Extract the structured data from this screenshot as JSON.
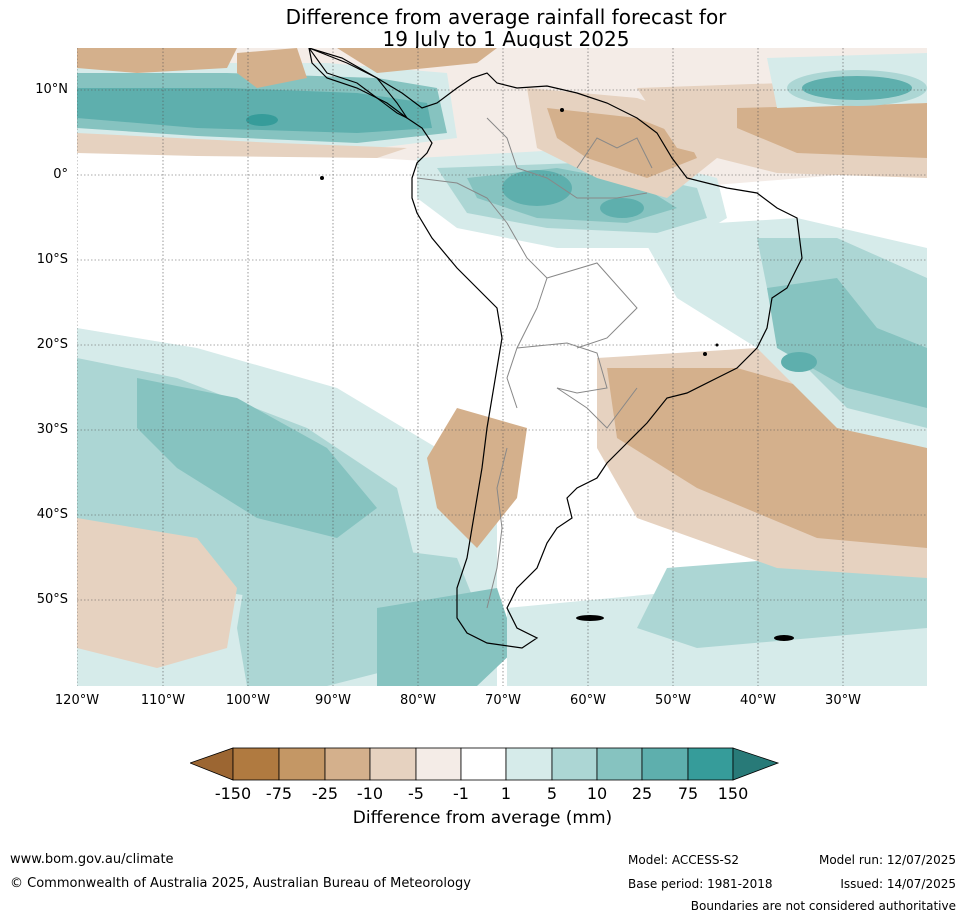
{
  "title": {
    "line1": "Difference from average rainfall forecast for",
    "line2": "19 July to 1 August 2025"
  },
  "map": {
    "lat_labels": [
      "10°N",
      "0°",
      "10°S",
      "20°S",
      "30°S",
      "40°S",
      "50°S"
    ],
    "lon_labels": [
      "120°W",
      "110°W",
      "100°W",
      "90°W",
      "80°W",
      "70°W",
      "60°W",
      "50°W",
      "40°W",
      "30°W"
    ],
    "colors": {
      "m150": "#9c6632",
      "m75": "#b07a40",
      "m25": "#c49765",
      "m10": "#d4b08c",
      "m5": "#e6d2c0",
      "m1": "#f4ece7",
      "neutral": "#ffffff",
      "p1": "#d6ebea",
      "p5": "#acd6d4",
      "p10": "#86c3c0",
      "p25": "#5eafad",
      "p75": "#369c9a",
      "p150": "#287a78"
    }
  },
  "colorbar": {
    "ticks": [
      "-150",
      "-75",
      "-25",
      "-10",
      "-5",
      "-1",
      "1",
      "5",
      "10",
      "25",
      "75",
      "150"
    ],
    "label": "Difference from average (mm)"
  },
  "footer": {
    "url": "www.bom.gov.au/climate",
    "copyright": "© Commonwealth of Australia 2025, Australian Bureau of Meteorology",
    "model": "Model: ACCESS-S2",
    "base_period": "Base period: 1981-2018",
    "model_run": "Model run: 12/07/2025",
    "issued": "Issued: 14/07/2025",
    "disclaimer": "Boundaries are not considered authoritative"
  }
}
